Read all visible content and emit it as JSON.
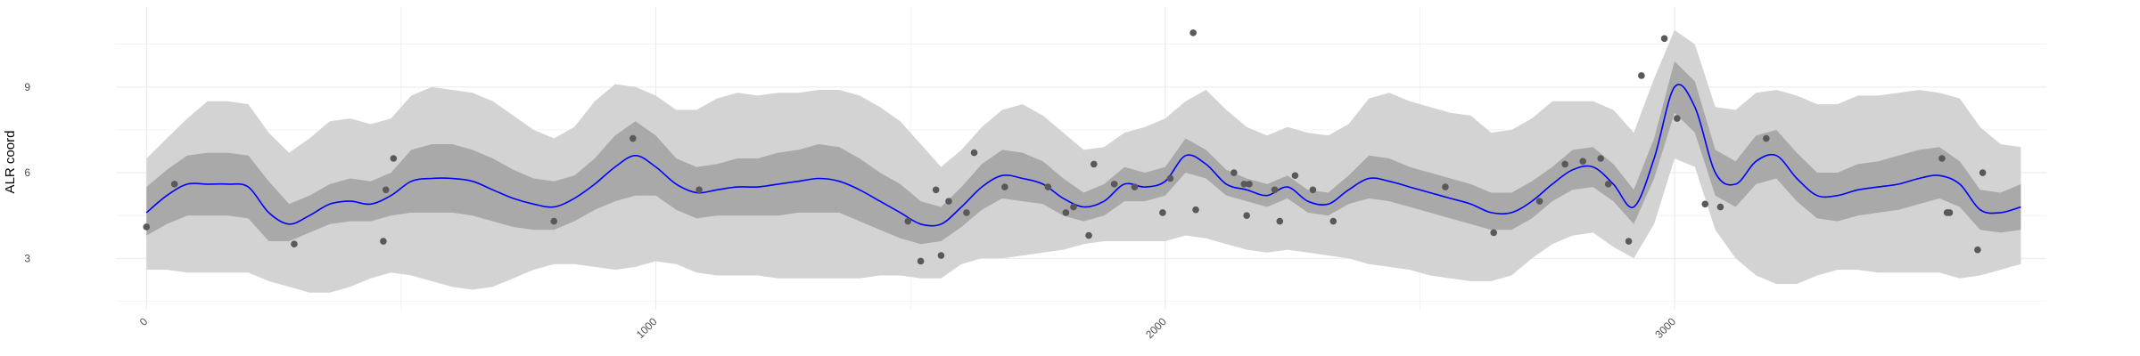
{
  "chart_data": {
    "type": "line",
    "title": "",
    "xlabel": "",
    "ylabel": "ALR coord",
    "xlim": [
      -60,
      3730
    ],
    "ylim": [
      1.2,
      11.8
    ],
    "x_ticks": [
      0,
      1000,
      2000,
      3000
    ],
    "x_tick_labels": [
      "0",
      "1000",
      "2000",
      "3000"
    ],
    "y_ticks": [
      3,
      6,
      9
    ],
    "y_tick_labels": [
      "3",
      "6",
      "9"
    ],
    "grid": true,
    "legend": "none",
    "colors": {
      "mean_line": "#0000ff",
      "inner_band": "#a9a9a9",
      "outer_band": "#d3d3d3",
      "points": "#595959",
      "grid": "#ebebeb"
    },
    "series": [
      {
        "type": "line",
        "x": [
          0,
          40,
          80,
          120,
          160,
          200,
          240,
          280,
          320,
          360,
          400,
          440,
          480,
          520,
          560,
          600,
          640,
          680,
          720,
          760,
          800,
          840,
          880,
          920,
          960,
          1000,
          1040,
          1080,
          1120,
          1160,
          1200,
          1240,
          1280,
          1320,
          1360,
          1400,
          1440,
          1480,
          1520,
          1560,
          1600,
          1640,
          1680,
          1720,
          1760,
          1800,
          1840,
          1880,
          1920,
          1960,
          2000,
          2040,
          2080,
          2120,
          2160,
          2200,
          2240,
          2280,
          2320,
          2360,
          2400,
          2440,
          2480,
          2520,
          2560,
          2600,
          2640,
          2680,
          2720,
          2760,
          2800,
          2840,
          2880,
          2920,
          2960,
          3000,
          3040,
          3080,
          3120,
          3160,
          3200,
          3240,
          3280,
          3320,
          3360,
          3400,
          3440,
          3480,
          3520,
          3560,
          3600,
          3640,
          3680
        ],
        "y": [
          4.6,
          5.2,
          5.6,
          5.6,
          5.6,
          5.5,
          4.6,
          4.2,
          4.5,
          4.9,
          5.0,
          4.9,
          5.2,
          5.7,
          5.8,
          5.8,
          5.7,
          5.4,
          5.1,
          4.9,
          4.8,
          5.1,
          5.6,
          6.2,
          6.6,
          6.2,
          5.6,
          5.3,
          5.4,
          5.5,
          5.5,
          5.6,
          5.7,
          5.8,
          5.7,
          5.4,
          5.0,
          4.6,
          4.2,
          4.2,
          4.8,
          5.5,
          5.9,
          5.8,
          5.6,
          5.1,
          4.8,
          5.0,
          5.6,
          5.5,
          5.7,
          6.6,
          6.3,
          5.6,
          5.4,
          5.2,
          5.5,
          5.0,
          4.9,
          5.4,
          5.8,
          5.7,
          5.5,
          5.3,
          5.1,
          4.9,
          4.6,
          4.6,
          5.0,
          5.6,
          6.1,
          6.2,
          5.6,
          4.8,
          6.5,
          9.0,
          8.3,
          6.0,
          5.6,
          6.4,
          6.6,
          5.8,
          5.2,
          5.2,
          5.4,
          5.5,
          5.6,
          5.8,
          5.9,
          5.6,
          4.7,
          4.6,
          4.8
        ]
      },
      {
        "type": "band",
        "level": "inner",
        "x": [
          0,
          40,
          80,
          120,
          160,
          200,
          240,
          280,
          320,
          360,
          400,
          440,
          480,
          520,
          560,
          600,
          640,
          680,
          720,
          760,
          800,
          840,
          880,
          920,
          960,
          1000,
          1040,
          1080,
          1120,
          1160,
          1200,
          1240,
          1280,
          1320,
          1360,
          1400,
          1440,
          1480,
          1520,
          1560,
          1600,
          1640,
          1680,
          1720,
          1760,
          1800,
          1840,
          1880,
          1920,
          1960,
          2000,
          2040,
          2080,
          2120,
          2160,
          2200,
          2240,
          2280,
          2320,
          2360,
          2400,
          2440,
          2480,
          2520,
          2560,
          2600,
          2640,
          2680,
          2720,
          2760,
          2800,
          2840,
          2880,
          2920,
          2960,
          3000,
          3040,
          3080,
          3120,
          3160,
          3200,
          3240,
          3280,
          3320,
          3360,
          3400,
          3440,
          3480,
          3520,
          3560,
          3600,
          3640,
          3680
        ],
        "lower": [
          3.8,
          4.2,
          4.5,
          4.5,
          4.5,
          4.4,
          3.6,
          3.6,
          3.9,
          4.2,
          4.3,
          4.3,
          4.5,
          4.6,
          4.6,
          4.6,
          4.5,
          4.3,
          4.1,
          4.0,
          4.0,
          4.3,
          4.7,
          5.0,
          5.2,
          5.2,
          4.7,
          4.4,
          4.5,
          4.5,
          4.5,
          4.5,
          4.6,
          4.6,
          4.6,
          4.3,
          4.0,
          3.7,
          3.5,
          3.6,
          4.1,
          4.7,
          5.1,
          5.0,
          4.9,
          4.5,
          4.3,
          4.5,
          5.0,
          5.0,
          5.2,
          6.0,
          5.8,
          5.2,
          5.0,
          4.8,
          5.1,
          4.6,
          4.5,
          4.9,
          5.1,
          5.0,
          4.8,
          4.6,
          4.4,
          4.2,
          4.0,
          4.0,
          4.4,
          5.0,
          5.4,
          5.5,
          5.0,
          4.2,
          5.8,
          8.1,
          7.4,
          5.2,
          4.8,
          5.6,
          5.8,
          5.0,
          4.4,
          4.3,
          4.5,
          4.6,
          4.7,
          4.9,
          5.1,
          4.8,
          4.0,
          3.9,
          4.0
        ],
        "upper": [
          5.5,
          6.1,
          6.6,
          6.7,
          6.7,
          6.6,
          5.7,
          4.9,
          5.2,
          5.6,
          5.8,
          5.7,
          6.0,
          6.8,
          7.0,
          7.0,
          6.8,
          6.5,
          6.1,
          5.8,
          5.7,
          5.9,
          6.5,
          7.3,
          7.8,
          7.3,
          6.5,
          6.2,
          6.3,
          6.5,
          6.5,
          6.7,
          6.8,
          7.0,
          6.9,
          6.5,
          6.0,
          5.6,
          5.0,
          4.8,
          5.5,
          6.3,
          6.8,
          6.7,
          6.4,
          5.8,
          5.3,
          5.6,
          6.2,
          6.0,
          6.2,
          7.2,
          6.8,
          6.1,
          5.8,
          5.6,
          5.9,
          5.4,
          5.3,
          5.9,
          6.6,
          6.5,
          6.2,
          6.0,
          5.8,
          5.6,
          5.3,
          5.3,
          5.7,
          6.2,
          6.8,
          6.9,
          6.3,
          5.4,
          7.2,
          9.9,
          9.2,
          6.8,
          6.4,
          7.3,
          7.5,
          6.7,
          6.0,
          6.0,
          6.3,
          6.4,
          6.6,
          6.8,
          6.9,
          6.4,
          5.4,
          5.3,
          5.6
        ]
      },
      {
        "type": "band",
        "level": "outer",
        "x": [
          0,
          40,
          80,
          120,
          160,
          200,
          240,
          280,
          320,
          360,
          400,
          440,
          480,
          520,
          560,
          600,
          640,
          680,
          720,
          760,
          800,
          840,
          880,
          920,
          960,
          1000,
          1040,
          1080,
          1120,
          1160,
          1200,
          1240,
          1280,
          1320,
          1360,
          1400,
          1440,
          1480,
          1520,
          1560,
          1600,
          1640,
          1680,
          1720,
          1760,
          1800,
          1840,
          1880,
          1920,
          1960,
          2000,
          2040,
          2080,
          2120,
          2160,
          2200,
          2240,
          2280,
          2320,
          2360,
          2400,
          2440,
          2480,
          2520,
          2560,
          2600,
          2640,
          2680,
          2720,
          2760,
          2800,
          2840,
          2880,
          2920,
          2960,
          3000,
          3040,
          3080,
          3120,
          3160,
          3200,
          3240,
          3280,
          3320,
          3360,
          3400,
          3440,
          3480,
          3520,
          3560,
          3600,
          3640,
          3680
        ],
        "lower": [
          2.6,
          2.6,
          2.5,
          2.5,
          2.5,
          2.5,
          2.2,
          2.0,
          1.8,
          1.8,
          2.0,
          2.3,
          2.5,
          2.4,
          2.2,
          2.0,
          1.9,
          2.0,
          2.3,
          2.6,
          2.8,
          2.8,
          2.7,
          2.6,
          2.7,
          2.9,
          2.8,
          2.5,
          2.4,
          2.4,
          2.4,
          2.3,
          2.3,
          2.3,
          2.3,
          2.3,
          2.4,
          2.4,
          2.3,
          2.3,
          2.8,
          3.0,
          3.0,
          3.1,
          3.2,
          3.3,
          3.5,
          3.6,
          3.6,
          3.6,
          3.6,
          3.8,
          3.7,
          3.5,
          3.3,
          3.2,
          3.3,
          3.2,
          3.1,
          3.0,
          2.8,
          2.7,
          2.6,
          2.4,
          2.3,
          2.2,
          2.2,
          2.4,
          3.0,
          3.5,
          3.8,
          3.9,
          3.4,
          3.0,
          4.2,
          6.5,
          6.2,
          4.0,
          3.0,
          2.4,
          2.1,
          2.1,
          2.4,
          2.6,
          2.6,
          2.5,
          2.5,
          2.5,
          2.5,
          2.3,
          2.4,
          2.6,
          2.8
        ],
        "upper": [
          6.5,
          7.2,
          7.9,
          8.5,
          8.5,
          8.4,
          7.4,
          6.7,
          7.2,
          7.8,
          7.9,
          7.7,
          7.9,
          8.7,
          9.0,
          8.9,
          8.8,
          8.5,
          8.0,
          7.5,
          7.2,
          7.6,
          8.5,
          9.1,
          9.0,
          8.7,
          8.2,
          8.2,
          8.6,
          8.8,
          8.7,
          8.8,
          8.8,
          8.9,
          8.9,
          8.7,
          8.3,
          7.8,
          7.0,
          6.2,
          6.8,
          7.6,
          8.2,
          8.4,
          8.0,
          7.4,
          6.8,
          6.9,
          7.4,
          7.6,
          7.9,
          8.5,
          8.9,
          8.2,
          7.6,
          7.3,
          7.6,
          7.4,
          7.3,
          7.7,
          8.6,
          8.8,
          8.5,
          8.3,
          8.1,
          8.0,
          7.4,
          7.5,
          7.9,
          8.5,
          8.5,
          8.5,
          8.2,
          7.4,
          9.3,
          11.0,
          10.5,
          8.3,
          8.2,
          8.8,
          8.9,
          8.7,
          8.4,
          8.4,
          8.7,
          8.7,
          8.8,
          8.9,
          8.8,
          8.6,
          7.6,
          7.0,
          6.9
        ]
      },
      {
        "type": "scatter",
        "x": [
          0,
          55,
          290,
          465,
          470,
          485,
          800,
          955,
          1085,
          1495,
          1520,
          1550,
          1560,
          1575,
          1610,
          1625,
          1685,
          1770,
          1805,
          1820,
          1850,
          1860,
          1900,
          1940,
          1995,
          2010,
          2055,
          2060,
          2135,
          2155,
          2160,
          2165,
          2215,
          2225,
          2255,
          2290,
          2330,
          2550,
          2645,
          2735,
          2785,
          2820,
          2855,
          2870,
          2910,
          2935,
          2980,
          3005,
          3060,
          3090,
          3180,
          3525,
          3535,
          3540,
          3595,
          3605
        ],
        "y": [
          4.1,
          5.6,
          3.5,
          3.6,
          5.4,
          6.5,
          4.3,
          7.2,
          5.4,
          4.3,
          2.9,
          5.4,
          3.1,
          5.0,
          4.6,
          6.7,
          5.5,
          5.5,
          4.6,
          4.8,
          3.8,
          6.3,
          5.6,
          5.5,
          4.6,
          5.8,
          10.9,
          4.7,
          6.0,
          5.6,
          4.5,
          5.6,
          5.4,
          4.3,
          5.9,
          5.4,
          4.3,
          5.5,
          3.9,
          5.0,
          6.3,
          6.4,
          6.5,
          5.6,
          3.6,
          9.4,
          10.7,
          7.9,
          4.9,
          4.8,
          7.2,
          6.5,
          4.6,
          4.6,
          3.3,
          6.0
        ]
      }
    ]
  }
}
